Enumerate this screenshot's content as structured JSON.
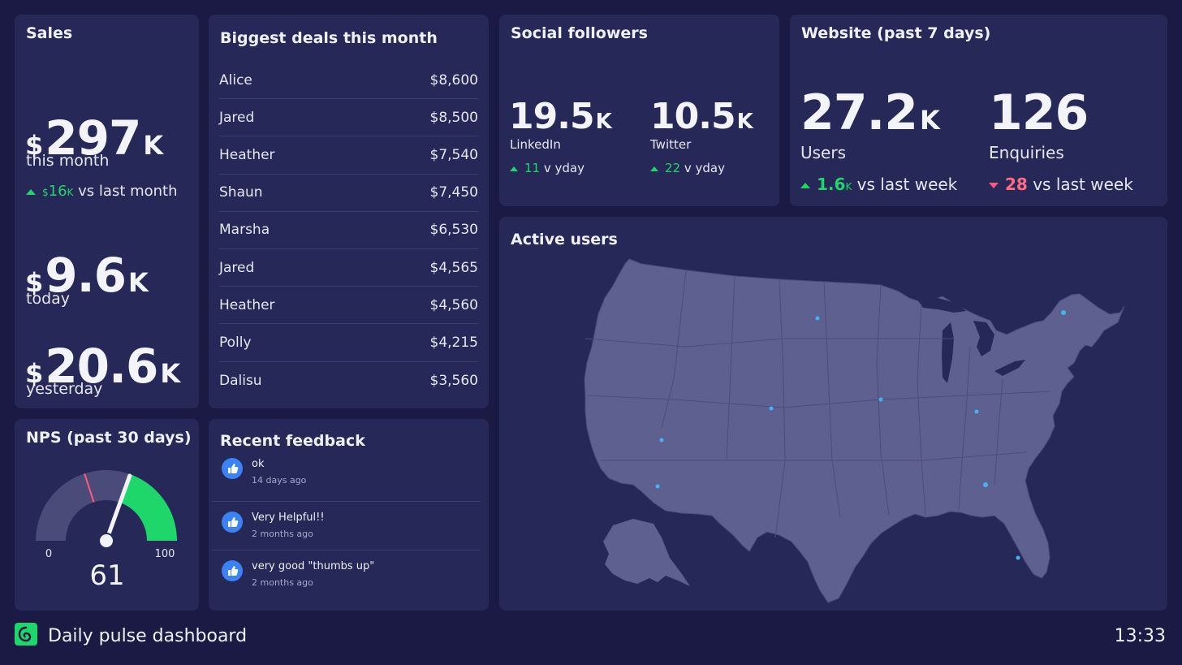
{
  "sales": {
    "title": "Sales",
    "currency": "$",
    "month_value": "297",
    "month_suffix": "K",
    "month_label": "this month",
    "month_delta_value": "16",
    "month_delta_suffix": "K",
    "month_delta_text": "vs last month",
    "today_value": "9.6",
    "today_suffix": "K",
    "today_label": "today",
    "yesterday_value": "20.6",
    "yesterday_suffix": "K",
    "yesterday_label": "yesterday"
  },
  "deals": {
    "title": "Biggest deals this month",
    "rows": [
      {
        "name": "Alice",
        "amount": "$8,600"
      },
      {
        "name": "Jared",
        "amount": "$8,500"
      },
      {
        "name": "Heather",
        "amount": "$7,540"
      },
      {
        "name": "Shaun",
        "amount": "$7,450"
      },
      {
        "name": "Marsha",
        "amount": "$6,530"
      },
      {
        "name": "Jared",
        "amount": "$4,565"
      },
      {
        "name": "Heather",
        "amount": "$4,560"
      },
      {
        "name": "Polly",
        "amount": "$4,215"
      },
      {
        "name": "Dalisu",
        "amount": "$3,560"
      }
    ]
  },
  "social": {
    "title": "Social followers",
    "linkedin_value": "19.5",
    "linkedin_suffix": "K",
    "linkedin_label": "LinkedIn",
    "linkedin_delta": "11",
    "linkedin_delta_text": "v yday",
    "twitter_value": "10.5",
    "twitter_suffix": "K",
    "twitter_label": "Twitter",
    "twitter_delta": "22",
    "twitter_delta_text": "v yday"
  },
  "website": {
    "title": "Website (past 7 days)",
    "users_value": "27.2",
    "users_suffix": "K",
    "users_label": "Users",
    "users_delta": "1.6",
    "users_delta_suffix": "K",
    "users_delta_text": "vs last week",
    "enquiries_value": "126",
    "enquiries_label": "Enquiries",
    "enquiries_delta": "28",
    "enquiries_delta_text": "vs last week"
  },
  "nps": {
    "title": "NPS (past 30 days)",
    "min_label": "0",
    "max_label": "100",
    "score": 61,
    "score_label": "61",
    "target": 40,
    "fill_start": 60,
    "colors": {
      "track": "#4a4b78",
      "fill": "#1fd66a",
      "target": "#ff5a78",
      "needle": "#f2f2f8"
    }
  },
  "feedback": {
    "title": "Recent feedback",
    "items": [
      {
        "text": "ok",
        "time": "14 days ago",
        "icon": "thumbs-up-icon"
      },
      {
        "text": "Very Helpful!!",
        "time": "2 months ago",
        "icon": "thumbs-up-icon"
      },
      {
        "text": "very good \"thumbs up\"",
        "time": "2 months ago",
        "icon": "thumbs-up-icon"
      }
    ]
  },
  "active_users": {
    "title": "Active users"
  },
  "footer": {
    "title": "Daily pulse dashboard",
    "time": "13:33",
    "logo_icon": "geckoboard-logo-icon"
  },
  "colors": {
    "background": "#1b1a45",
    "card": "#262858",
    "positive": "#1fd66a",
    "negative": "#ff5a78",
    "map_land": "#5e6090",
    "map_dot": "#3fb6f0"
  }
}
